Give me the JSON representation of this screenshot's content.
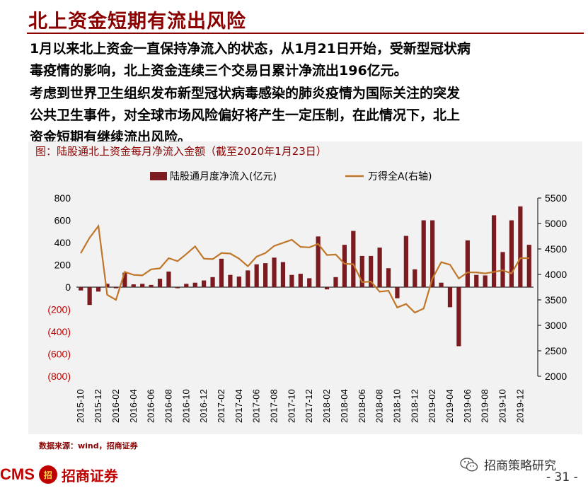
{
  "slide": {
    "title": "北上资金短期有流出风险",
    "para1": "1月以来北上资金一直保持净流入的状态，从1月21日开始，受新型冠状病\n毒疫情的影响，北上资金连续三个交易日累计净流出196亿元。",
    "para2": "考虑到世界卫生组织发布新型冠状病毒感染的肺炎疫情为国际关注的突发\n公共卫生事件，对全球市场风险偏好将产生一定压制，在此情况下，北上\n资金短期有继续流出风险。",
    "chart_caption": "图：陆股通北上资金每月净流入金额（截至2020年1月23日）",
    "source": "数据来源：wind，招商证券",
    "footer_brand_latin": "CMS",
    "footer_seal_text": "招",
    "footer_brand_cn": "招商证券",
    "wechat_label": "招商策略研究",
    "wechat_icon": "wechat-icon",
    "page_number": "- 31 -",
    "colors": {
      "title": "#8b0000",
      "bar": "#7b1a1f",
      "line": "#c0772a",
      "panel": "#f2f2f2"
    }
  },
  "chart_data": {
    "type": "bar",
    "x": [
      "2015-10",
      "2015-11",
      "2015-12",
      "2016-01",
      "2016-02",
      "2016-03",
      "2016-04",
      "2016-05",
      "2016-06",
      "2016-07",
      "2016-08",
      "2016-09",
      "2016-10",
      "2016-11",
      "2016-12",
      "2017-01",
      "2017-02",
      "2017-03",
      "2017-04",
      "2017-05",
      "2017-06",
      "2017-07",
      "2017-08",
      "2017-09",
      "2017-10",
      "2017-11",
      "2017-12",
      "2018-01",
      "2018-02",
      "2018-03",
      "2018-04",
      "2018-05",
      "2018-06",
      "2018-07",
      "2018-08",
      "2018-09",
      "2018-10",
      "2018-11",
      "2018-12",
      "2019-01",
      "2019-02",
      "2019-03",
      "2019-04",
      "2019-05",
      "2019-06",
      "2019-07",
      "2019-08",
      "2019-09",
      "2019-10",
      "2019-11",
      "2019-12",
      "2020-01"
    ],
    "x_tick_labels": [
      "2015-10",
      "2015-12",
      "2016-02",
      "2016-04",
      "2016-06",
      "2016-08",
      "2016-10",
      "2016-12",
      "2017-02",
      "2017-04",
      "2017-06",
      "2017-08",
      "2017-10",
      "2017-12",
      "2018-02",
      "2018-04",
      "2018-06",
      "2018-08",
      "2018-10",
      "2018-12",
      "2019-02",
      "2019-04",
      "2019-06",
      "2019-08",
      "2019-10",
      "2019-12"
    ],
    "series": [
      {
        "name": "陆股通月度净流入(亿元)",
        "type": "bar",
        "axis": "left",
        "values": [
          -30,
          -160,
          -40,
          30,
          -10,
          130,
          25,
          30,
          20,
          75,
          140,
          -10,
          30,
          40,
          60,
          90,
          255,
          110,
          95,
          150,
          205,
          215,
          265,
          225,
          110,
          120,
          80,
          455,
          -20,
          90,
          380,
          505,
          280,
          280,
          355,
          170,
          -100,
          460,
          160,
          600,
          600,
          40,
          -180,
          -530,
          420,
          110,
          105,
          645,
          315,
          600,
          725,
          380
        ]
      },
      {
        "name": "万得全A(右轴)",
        "type": "line",
        "axis": "right",
        "values": [
          4420,
          4720,
          4950,
          3600,
          3500,
          4050,
          3990,
          3980,
          4100,
          4120,
          4320,
          4260,
          4400,
          4550,
          4310,
          4300,
          4420,
          4410,
          4310,
          4160,
          4350,
          4420,
          4560,
          4620,
          4680,
          4540,
          4530,
          4600,
          4380,
          4390,
          4210,
          4200,
          3850,
          3860,
          3660,
          3680,
          3350,
          3420,
          3250,
          3330,
          3920,
          4240,
          4190,
          3920,
          4040,
          4040,
          4020,
          4050,
          4080,
          4020,
          4320,
          4320
        ]
      }
    ],
    "y_left_ticks": [
      "800",
      "600",
      "400",
      "200",
      "0",
      "(200)",
      "(400)",
      "(600)",
      "(800)"
    ],
    "y_right_ticks": [
      "5500",
      "5000",
      "4500",
      "4000",
      "3500",
      "3000",
      "2500",
      "2000"
    ],
    "ylim_left": [
      -800,
      800
    ],
    "ylim_right": [
      2000,
      5500
    ],
    "legend_position": "top",
    "grid": false
  }
}
